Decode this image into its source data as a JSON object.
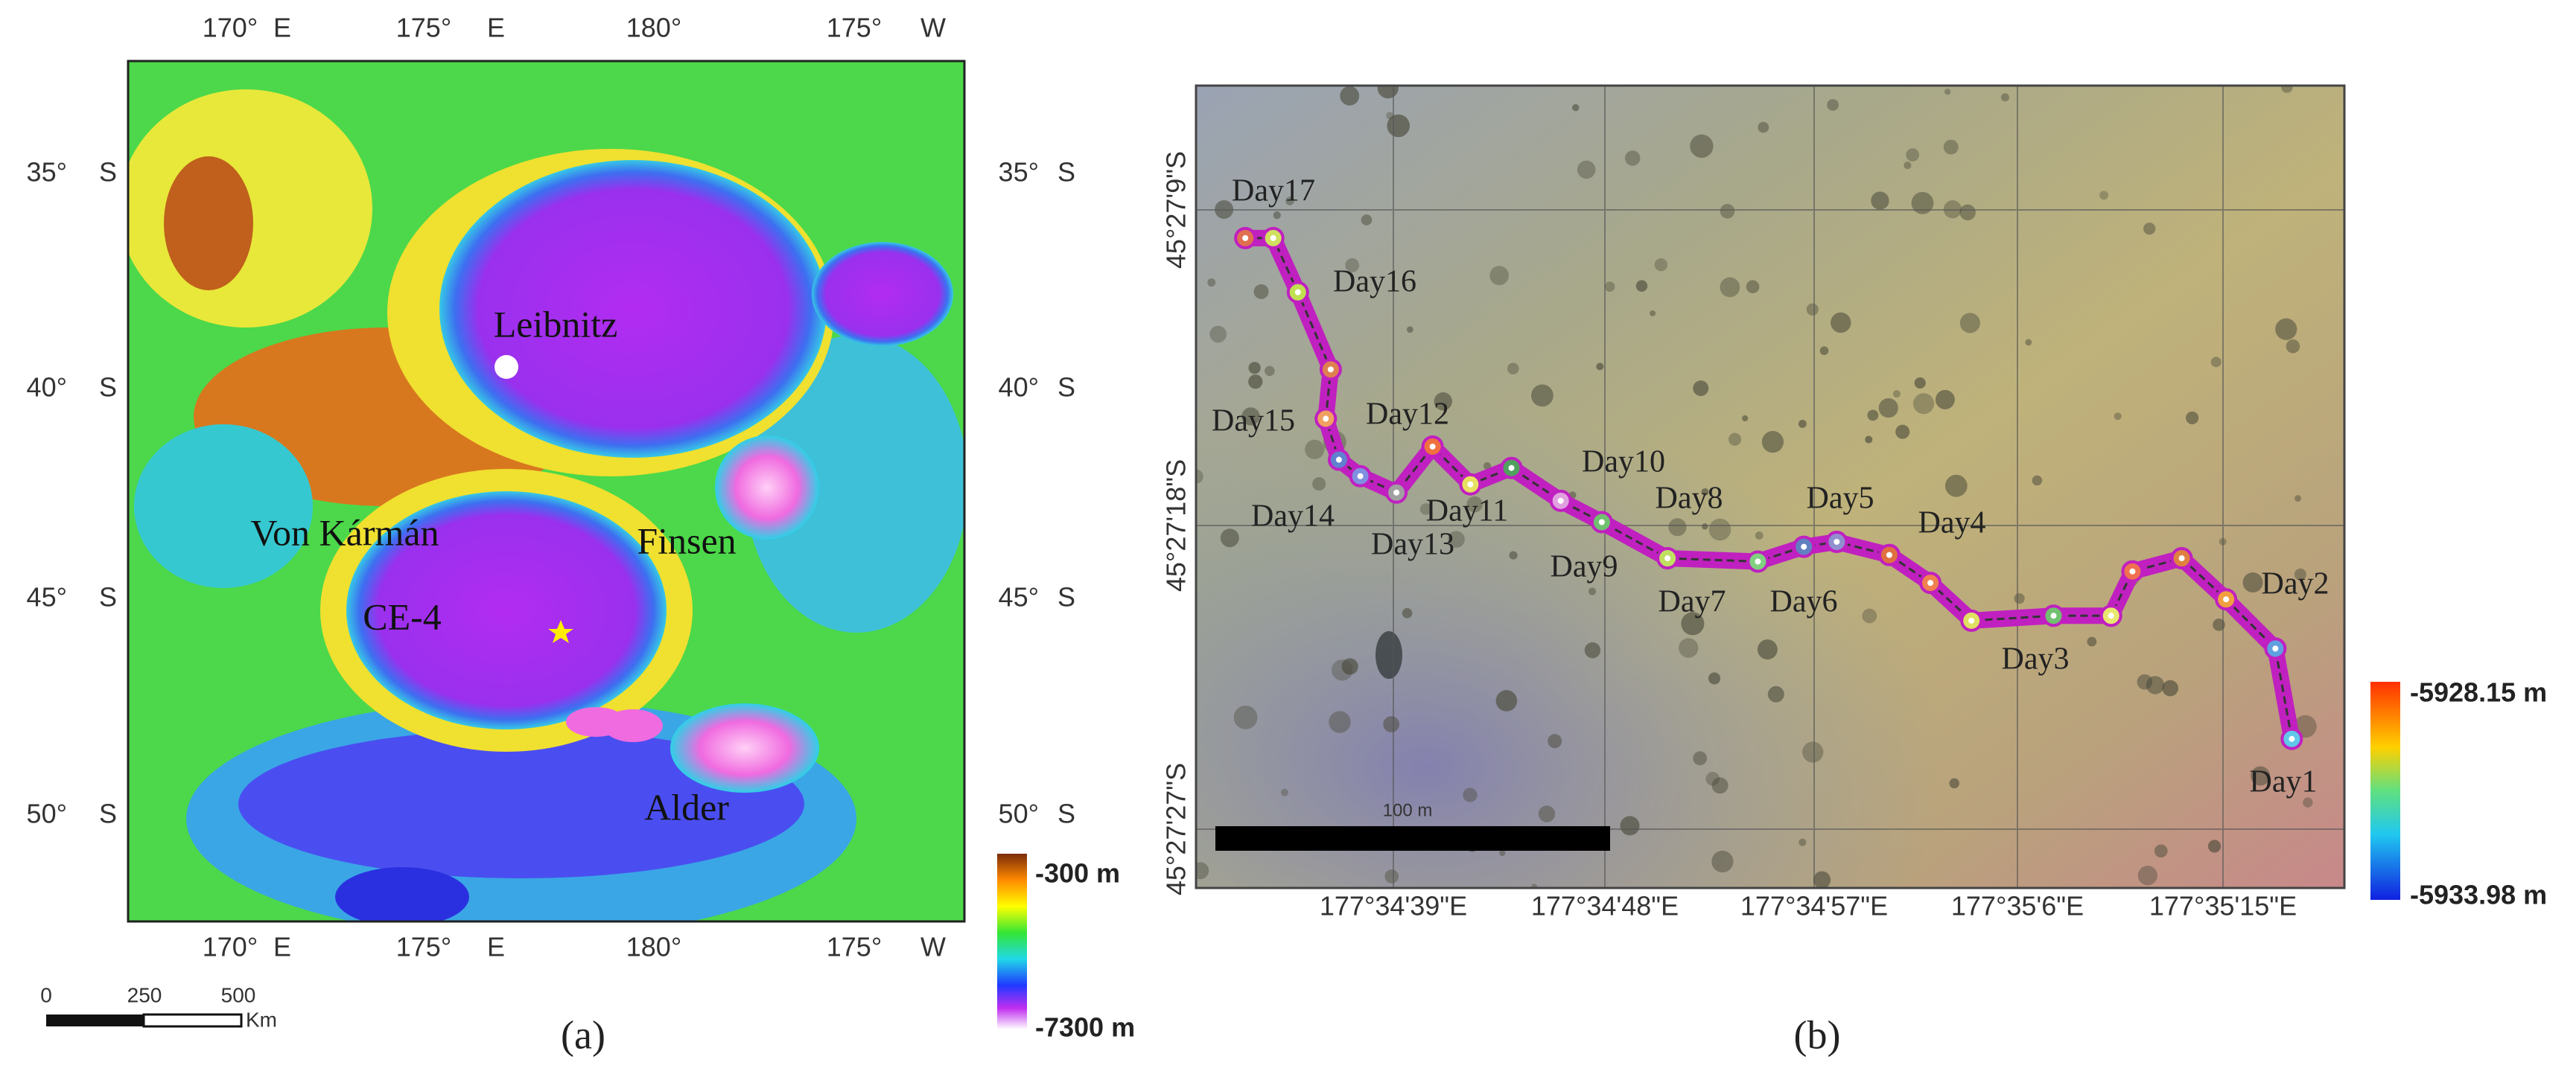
{
  "panel_a": {
    "label": "(a)",
    "top_axis": [
      "170°",
      "E",
      "175°",
      "E",
      "180°",
      "175°",
      "W"
    ],
    "bottom_axis": [
      "170°",
      "E",
      "175°",
      "E",
      "180°",
      "175°",
      "W"
    ],
    "left_axis": [
      {
        "deg": "35°",
        "hem": "S"
      },
      {
        "deg": "40°",
        "hem": "S"
      },
      {
        "deg": "45°",
        "hem": "S"
      },
      {
        "deg": "50°",
        "hem": "S"
      }
    ],
    "right_axis": [
      {
        "deg": "35°",
        "hem": "S"
      },
      {
        "deg": "40°",
        "hem": "S"
      },
      {
        "deg": "45°",
        "hem": "S"
      },
      {
        "deg": "50°",
        "hem": "S"
      }
    ],
    "features": [
      "Leibnitz",
      "Von Kármán",
      "Finsen",
      "CE-4",
      "Alder"
    ],
    "colorbar": [
      "-300 m",
      "-7300 m"
    ],
    "scale_bar": [
      "0",
      "250",
      "500",
      "Km"
    ]
  },
  "panel_b": {
    "label": "(b)",
    "days": [
      "Day1",
      "Day2",
      "Day3",
      "Day4",
      "Day5",
      "Day6",
      "Day7",
      "Day8",
      "Day9",
      "Day10",
      "Day11",
      "Day12",
      "Day13",
      "Day14",
      "Day15",
      "Day16",
      "Day17"
    ],
    "longitudes": [
      "177°34'39\"E",
      "177°34'48\"E",
      "177°34'57\"E",
      "177°35'6\"E",
      "177°35'15\"E"
    ],
    "latitudes": [
      "45°27'9\"S",
      "45°27'18\"S",
      "45°27'27\"S"
    ],
    "scale_bar": "100 m",
    "colorbar": [
      "-5928.15 m",
      "-5933.98 m"
    ]
  }
}
